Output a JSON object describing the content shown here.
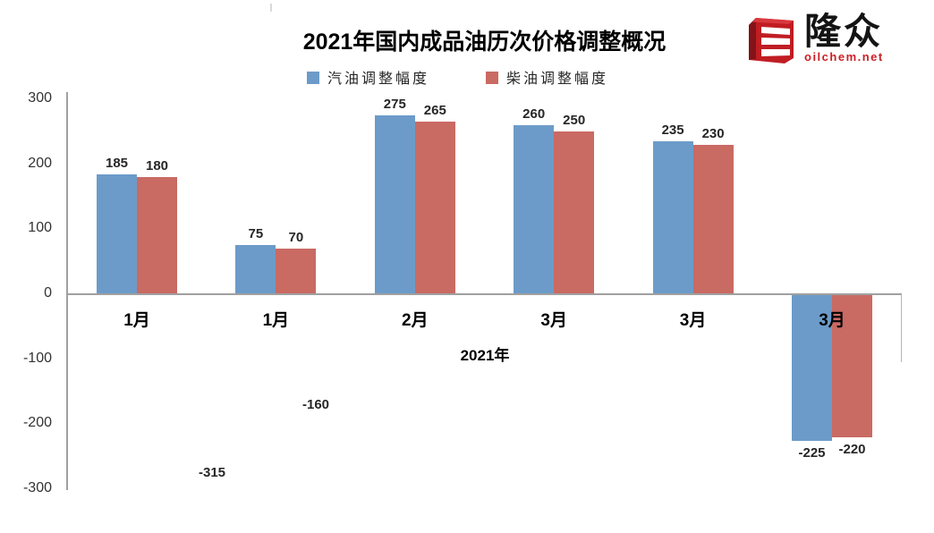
{
  "logo": {
    "brand_cn": "隆众",
    "brand_domain": "oilchem.net",
    "brand_red": "#c01d23"
  },
  "chart_data": {
    "type": "bar",
    "title": "2021年国内成品油历次价格调整概况",
    "categories": [
      "1月",
      "1月",
      "2月",
      "3月",
      "3月",
      "3月"
    ],
    "series": [
      {
        "name": "汽油调整幅度",
        "color": "#6c9bc9",
        "values": [
          185,
          75,
          275,
          260,
          235,
          -225
        ]
      },
      {
        "name": "柴油调整幅度",
        "color": "#c96a63",
        "values": [
          180,
          70,
          265,
          250,
          230,
          -220
        ]
      }
    ],
    "xlabel": "2021年",
    "ylim": [
      -300,
      300
    ],
    "y_ticks": [
      300,
      200,
      100,
      0,
      -100,
      -200,
      -300
    ],
    "grid": false,
    "legend_position": "top",
    "annotations": [
      {
        "text": "-160",
        "x": 353,
        "y": 454
      },
      {
        "text": "-315",
        "x": 237,
        "y": 530
      }
    ]
  }
}
